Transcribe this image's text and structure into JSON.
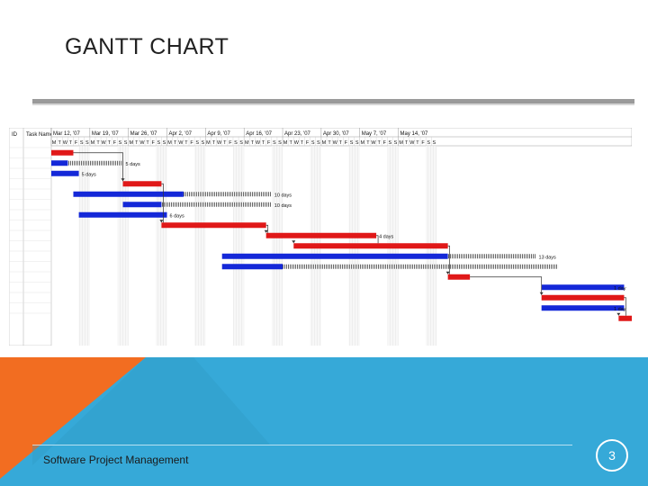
{
  "slide": {
    "title": "GANTT CHART",
    "footer": "Software Project Management",
    "page_number": "3"
  },
  "colors": {
    "task_bar": "#e01818",
    "baseline_bar": "#1428d8",
    "footer_orange": "#f26d21",
    "footer_blue": "#36a9d8",
    "title_rule": "#9a9a9a"
  },
  "chart_data": {
    "type": "gantt",
    "columns": [
      "ID",
      "Task Name"
    ],
    "timescale_weeks": [
      "Mar 12, '07",
      "Mar 19, '07",
      "Mar 26, '07",
      "Apr 2, '07",
      "Apr 9, '07",
      "Apr 16, '07",
      "Apr 23, '07",
      "Apr 30, '07",
      "May 7, '07",
      "May 14, '07"
    ],
    "day_letters": [
      "M",
      "T",
      "W",
      "T",
      "F",
      "S",
      "S"
    ],
    "tasks": [
      {
        "start": 0,
        "duration": 4,
        "kind": "task"
      },
      {
        "start": 0,
        "duration": 3,
        "kind": "baseline",
        "slack_to": 13,
        "label": "5 days"
      },
      {
        "start": 0,
        "duration": 5,
        "kind": "baseline",
        "label": "5 days"
      },
      {
        "start": 13,
        "duration": 7,
        "kind": "task"
      },
      {
        "start": 4,
        "duration": 20,
        "kind": "baseline",
        "slack_to": 40,
        "label": "10 days"
      },
      {
        "start": 13,
        "duration": 7,
        "kind": "baseline",
        "slack_to": 40,
        "label": "10 days"
      },
      {
        "start": 5,
        "duration": 16,
        "kind": "baseline",
        "label": "6 days"
      },
      {
        "start": 20,
        "duration": 19,
        "kind": "task"
      },
      {
        "start": 39,
        "duration": 20,
        "kind": "task",
        "label": "4 days"
      },
      {
        "start": 44,
        "duration": 28,
        "kind": "task"
      },
      {
        "start": 31,
        "duration": 41,
        "kind": "baseline",
        "slack_to": 88,
        "label": "13 days"
      },
      {
        "start": 31,
        "duration": 11,
        "kind": "baseline",
        "slack_to": 92
      },
      {
        "start": 72,
        "duration": 4,
        "kind": "task"
      },
      {
        "start": 89,
        "duration": 15,
        "kind": "baseline",
        "slack_to": 103,
        "label": "1 day"
      },
      {
        "start": 89,
        "duration": 15,
        "kind": "task"
      },
      {
        "start": 89,
        "duration": 15,
        "kind": "baseline",
        "label": "1 day"
      },
      {
        "start": 103,
        "duration": 3,
        "kind": "task"
      }
    ]
  }
}
